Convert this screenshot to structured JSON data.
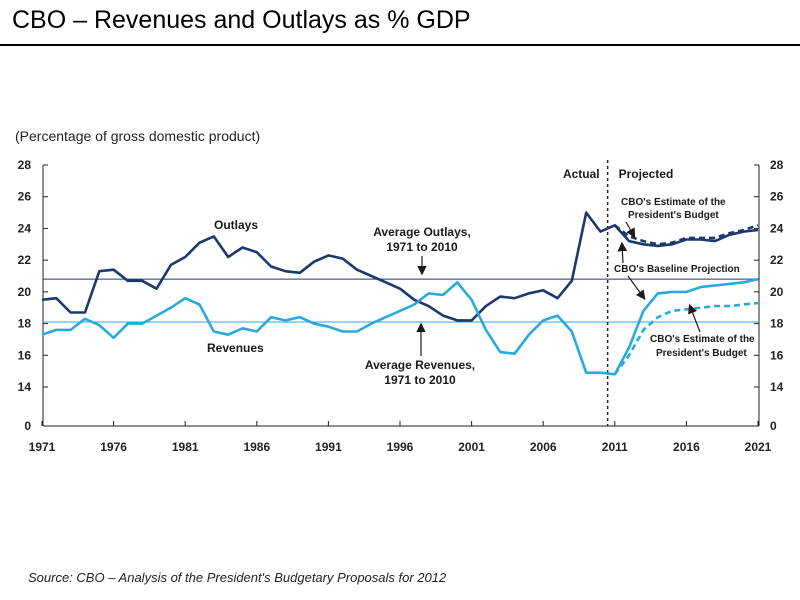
{
  "slide": {
    "title": "CBO – Revenues and Outlays as % GDP",
    "source": "Source:  CBO – Analysis of the President's Budgetary Proposals for 2012"
  },
  "chart_data": {
    "type": "line",
    "ylabel": "(Percentage of gross domestic product)",
    "xlim": [
      1971,
      2021
    ],
    "ylim": [
      0,
      28
    ],
    "axis_break": [
      0,
      13
    ],
    "y_ticks": [
      0,
      14,
      16,
      18,
      20,
      22,
      24,
      26,
      28
    ],
    "x_ticks": [
      1971,
      1976,
      1981,
      1986,
      1991,
      1996,
      2001,
      2006,
      2011,
      2016,
      2021
    ],
    "grid": false,
    "divider": {
      "year": 2010.5,
      "left_label": "Actual",
      "right_label": "Projected"
    },
    "reference_lines": [
      {
        "name": "Average Outlays, 1971 to 2010",
        "value": 20.8,
        "color": "#1b3a6b"
      },
      {
        "name": "Average Revenues, 1971 to 2010",
        "value": 18.1,
        "color": "#29a9dc"
      }
    ],
    "series": [
      {
        "name": "Outlays",
        "color": "#1b3a6b",
        "style": "solid",
        "x": [
          1971,
          1972,
          1973,
          1974,
          1975,
          1976,
          1977,
          1978,
          1979,
          1980,
          1981,
          1982,
          1983,
          1984,
          1985,
          1986,
          1987,
          1988,
          1989,
          1990,
          1991,
          1992,
          1993,
          1994,
          1995,
          1996,
          1997,
          1998,
          1999,
          2000,
          2001,
          2002,
          2003,
          2004,
          2005,
          2006,
          2007,
          2008,
          2009,
          2010,
          2011,
          2012,
          2013,
          2014,
          2015,
          2016,
          2017,
          2018,
          2019,
          2020,
          2021
        ],
        "values": [
          19.5,
          19.6,
          18.7,
          18.7,
          21.3,
          21.4,
          20.7,
          20.7,
          20.2,
          21.7,
          22.2,
          23.1,
          23.5,
          22.2,
          22.8,
          22.5,
          21.6,
          21.3,
          21.2,
          21.9,
          22.3,
          22.1,
          21.4,
          21.0,
          20.6,
          20.2,
          19.5,
          19.1,
          18.5,
          18.2,
          18.2,
          19.1,
          19.7,
          19.6,
          19.9,
          20.1,
          19.6,
          20.7,
          25.0,
          23.8,
          24.2,
          23.2,
          23.0,
          22.9,
          23.0,
          23.3,
          23.3,
          23.2,
          23.6,
          23.8,
          23.9
        ]
      },
      {
        "name": "CBO's Estimate of the President's Budget (Outlays)",
        "color": "#1b3a6b",
        "style": "dashed",
        "x": [
          2011,
          2012,
          2013,
          2014,
          2015,
          2016,
          2017,
          2018,
          2019,
          2020,
          2021
        ],
        "values": [
          24.2,
          23.5,
          23.2,
          23.0,
          23.1,
          23.4,
          23.4,
          23.4,
          23.7,
          23.9,
          24.2
        ]
      },
      {
        "name": "Revenues",
        "color": "#29a9dc",
        "style": "solid",
        "x": [
          1971,
          1972,
          1973,
          1974,
          1975,
          1976,
          1977,
          1978,
          1979,
          1980,
          1981,
          1982,
          1983,
          1984,
          1985,
          1986,
          1987,
          1988,
          1989,
          1990,
          1991,
          1992,
          1993,
          1994,
          1995,
          1996,
          1997,
          1998,
          1999,
          2000,
          2001,
          2002,
          2003,
          2004,
          2005,
          2006,
          2007,
          2008,
          2009,
          2010,
          2011,
          2012,
          2013,
          2014,
          2015,
          2016,
          2017,
          2018,
          2019,
          2020,
          2021
        ],
        "values": [
          17.3,
          17.6,
          17.6,
          18.3,
          17.9,
          17.1,
          18.0,
          18.0,
          18.5,
          19.0,
          19.6,
          19.2,
          17.5,
          17.3,
          17.7,
          17.5,
          18.4,
          18.2,
          18.4,
          18.0,
          17.8,
          17.5,
          17.5,
          18.0,
          18.4,
          18.8,
          19.2,
          19.9,
          19.8,
          20.6,
          19.5,
          17.6,
          16.2,
          16.1,
          17.3,
          18.2,
          18.5,
          17.5,
          14.9,
          14.9,
          14.8,
          16.5,
          18.8,
          19.9,
          20.0,
          20.0,
          20.3,
          20.4,
          20.5,
          20.6,
          20.8
        ]
      },
      {
        "name": "CBO's Estimate of the President's Budget (Revenues)",
        "color": "#29a9dc",
        "style": "dashed",
        "x": [
          2011,
          2012,
          2013,
          2014,
          2015,
          2016,
          2017,
          2018,
          2019,
          2020,
          2021
        ],
        "values": [
          14.8,
          16.0,
          17.6,
          18.4,
          18.8,
          18.9,
          19.0,
          19.1,
          19.1,
          19.2,
          19.3
        ]
      }
    ],
    "annotations": {
      "outlays": "Outlays",
      "revenues": "Revenues",
      "avg_outlays": [
        "Average Outlays,",
        "1971 to 2010"
      ],
      "avg_revenues": [
        "Average Revenues,",
        "1971 to 2010"
      ],
      "pres_budget_top": [
        "CBO's Estimate of the",
        "President's Budget"
      ],
      "baseline": "CBO's Baseline Projection",
      "pres_budget_bottom": [
        "CBO's Estimate of the",
        "President's Budget"
      ]
    }
  }
}
